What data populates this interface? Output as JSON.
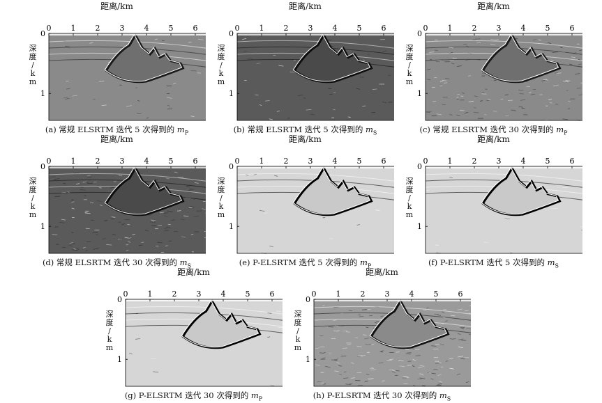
{
  "xlabel": "距离/km",
  "ylabel": "深度/km",
  "xticks": [
    "0",
    "1",
    "2",
    "3",
    "4",
    "5",
    "6"
  ],
  "yticks": [
    "0",
    "1"
  ],
  "panels": [
    {
      "caption_prefix": "(a) 常规 ELSRTM 迭代 5 次得到的 ",
      "var": "m",
      "sub": "P",
      "tone": "gray",
      "noise": 0.15
    },
    {
      "caption_prefix": "(b) 常规 ELSRTM 迭代 5 次得到的 ",
      "var": "m",
      "sub": "S",
      "tone": "dark",
      "noise": 0.2
    },
    {
      "caption_prefix": "(c) 常规 ELSRTM 迭代 30 次得到的 ",
      "var": "m",
      "sub": "P",
      "tone": "gray",
      "noise": 0.55
    },
    {
      "caption_prefix": "(d) 常规 ELSRTM 迭代 30 次得到的 ",
      "var": "m",
      "sub": "S",
      "tone": "dark",
      "noise": 0.6
    },
    {
      "caption_prefix": "(e) P-ELSRTM 迭代 5 次得到的 ",
      "var": "m",
      "sub": "P",
      "tone": "light",
      "noise": 0.05
    },
    {
      "caption_prefix": "(f) P-ELSRTM 迭代 5 次得到的 ",
      "var": "m",
      "sub": "S",
      "tone": "light",
      "noise": 0.05
    },
    {
      "caption_prefix": "(g) P-ELSRTM 迭代 30 次得到的 ",
      "var": "m",
      "sub": "P",
      "tone": "light",
      "noise": 0.05
    },
    {
      "caption_prefix": "(h) P-ELSRTM 迭代 30 次得到的 ",
      "var": "m",
      "sub": "S",
      "tone": "grayhi",
      "noise": 0.8
    }
  ]
}
